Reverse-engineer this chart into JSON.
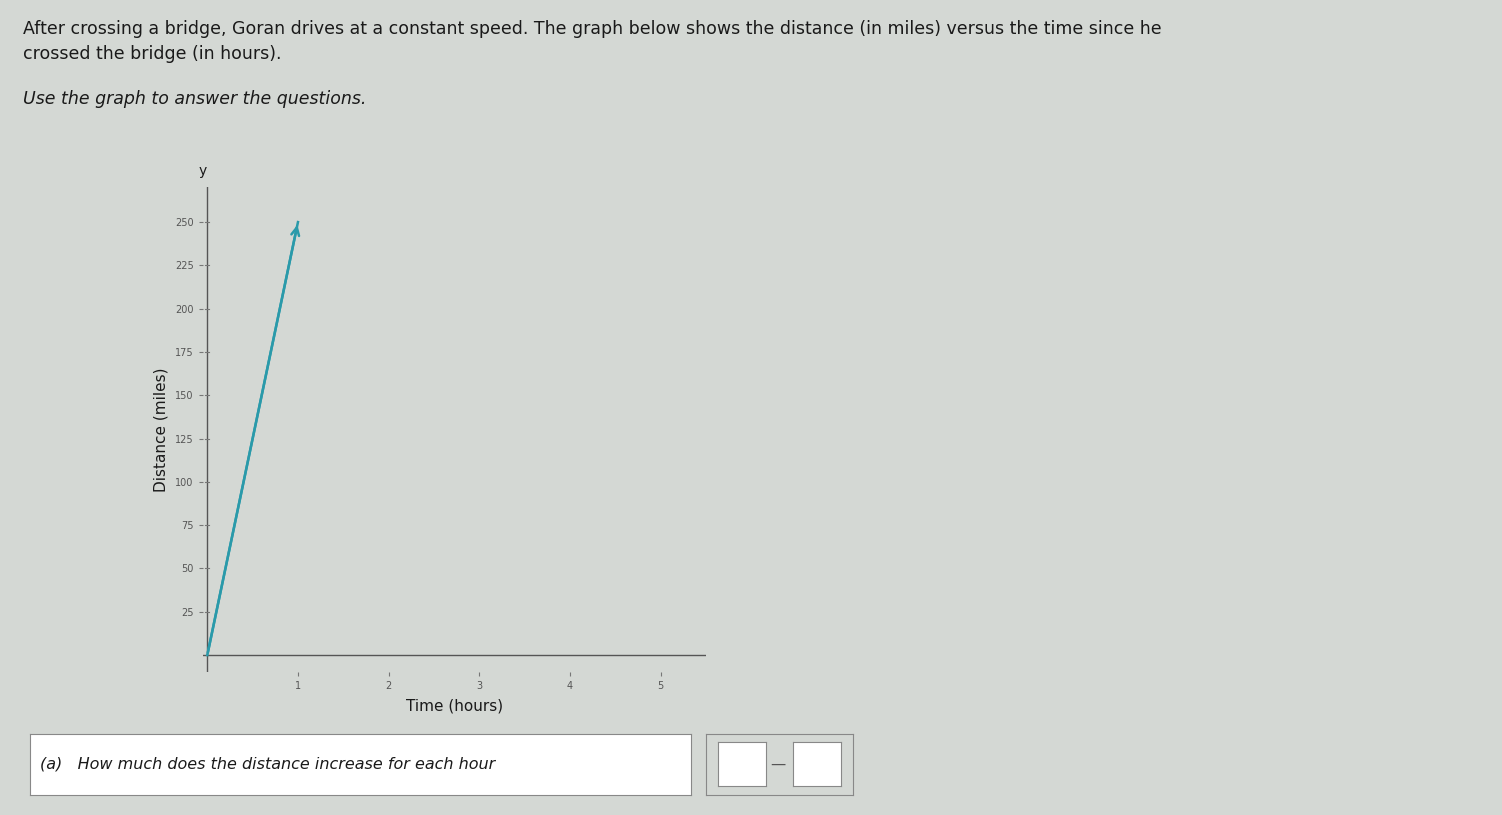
{
  "title_line1": "After crossing a bridge, Goran drives at a constant speed. The graph below shows the distance (in miles) versus the time since he",
  "title_line2": "crossed the bridge (in hours).",
  "subtitle_text": "Use the graph to answer the questions.",
  "xlabel": "Time (hours)",
  "ylabel": "Distance (miles)",
  "bg_color": "#d4d8d4",
  "line_color": "#2a9aaa",
  "line_x": [
    0.0,
    1.0
  ],
  "line_y": [
    0.0,
    250.0
  ],
  "xlim": [
    -0.05,
    5.5
  ],
  "ylim": [
    -10,
    270
  ],
  "yticks": [
    25,
    50,
    75,
    100,
    125,
    150,
    175,
    200,
    225,
    250
  ],
  "xticks": [
    1,
    2,
    3,
    4,
    5
  ],
  "question_text": "(a)   How much does the distance increase for each hour",
  "answer_box_color": "#ffffff",
  "text_color": "#1a1a1a",
  "axes_color": "#555555"
}
